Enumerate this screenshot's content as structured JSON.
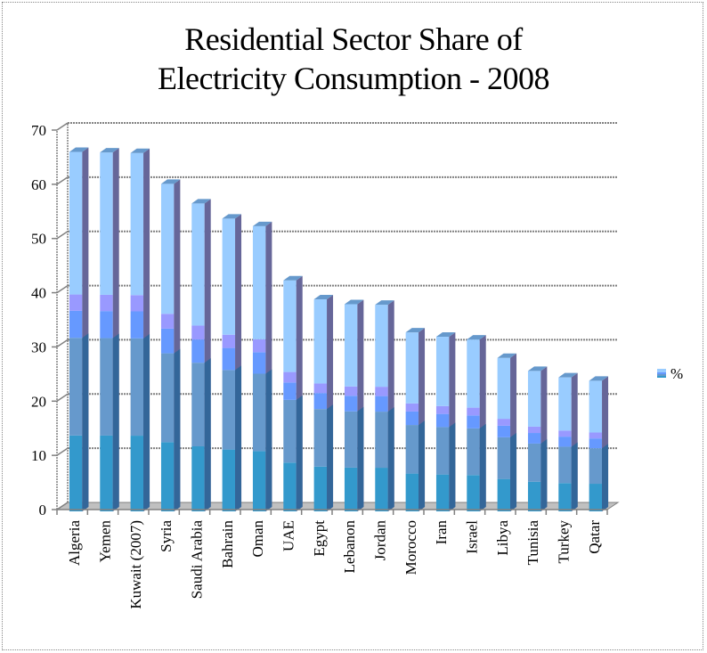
{
  "chart_data": {
    "type": "bar",
    "subtype": "3d-column",
    "title": "Residential Sector Share of Electricity Consumption - 2008",
    "title_lines": [
      "Residential Sector Share of",
      "Electricity Consumption - 2008"
    ],
    "xlabel": "",
    "ylabel": "",
    "ylim": [
      0,
      70
    ],
    "yticks": [
      0,
      10,
      20,
      30,
      40,
      50,
      60,
      70
    ],
    "grid": true,
    "legend": {
      "position": "right",
      "entries": [
        "%"
      ]
    },
    "categories": [
      "Algeria",
      "Yemen",
      "Kuwait (2007)",
      "Syria",
      "Saudi Arabia",
      "Bahrain",
      "Oman",
      "UAE",
      "Egypt",
      "Lebanon",
      "Jordan",
      "Morocco",
      "Iran",
      "Israel",
      "Libya",
      "Tunisia",
      "Turkey",
      "Qatar"
    ],
    "series": [
      {
        "name": "%",
        "values": [
          66.3,
          66.2,
          66.1,
          60.4,
          56.8,
          54.0,
          52.6,
          42.6,
          39.1,
          38.2,
          38.1,
          33.0,
          32.2,
          31.7,
          28.3,
          25.9,
          24.7,
          24.1
        ]
      }
    ],
    "colors": {
      "band_1": "#3399cc",
      "band_2": "#6699cc",
      "band_3": "#6699ff",
      "band_4": "#9999ff",
      "band_5": "#99ccff",
      "side": "#666699",
      "top": "#6699cc",
      "grid": "#808080"
    }
  }
}
